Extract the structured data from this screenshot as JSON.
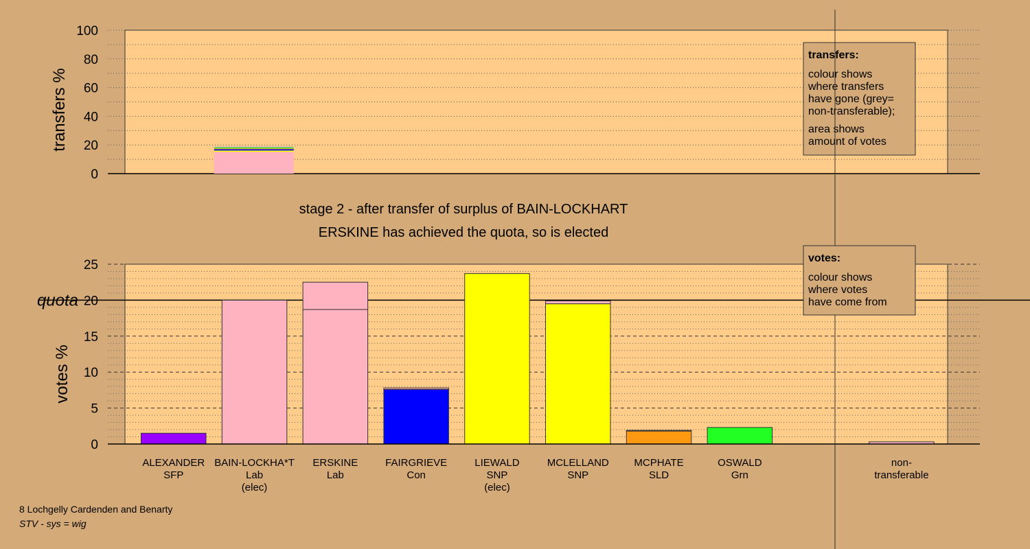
{
  "chart_data": [
    {
      "type": "bar",
      "stacked": true,
      "title": "",
      "xlabel": "",
      "ylabel": "transfers %",
      "ylim": [
        0,
        100
      ],
      "yticks": [
        0,
        20,
        40,
        60,
        80,
        100
      ],
      "grid": true,
      "legend": {
        "placement": "top-right",
        "heading": "transfers:",
        "lines1": [
          "colour shows",
          "where transfers",
          "have gone (grey=",
          "non-transferable);"
        ],
        "lines2": [
          "area shows",
          "amount of votes"
        ]
      },
      "bars": [
        {
          "column": 1,
          "segments": [
            {
              "value": 15.2,
              "color": "#ffb2c0"
            },
            {
              "value": 0.9,
              "color": "#ffff00"
            },
            {
              "value": 0.9,
              "color": "#0000ff"
            },
            {
              "value": 0.6,
              "color": "#ff9911"
            },
            {
              "value": 0.6,
              "color": "#22ff22"
            },
            {
              "value": 0.6,
              "color": "#aaaaaa"
            }
          ]
        }
      ]
    },
    {
      "type": "bar",
      "stacked": true,
      "title": "stage 2 - after transfer of surplus of BAIN-LOCKHART",
      "subtitle": "ERSKINE has achieved the quota, so is elected",
      "xlabel": "",
      "ylabel": "votes %",
      "ylim": [
        0,
        25
      ],
      "yticks": [
        0,
        5,
        10,
        15,
        20,
        25
      ],
      "quota": 20,
      "quota_label": "quota",
      "grid": true,
      "legend": {
        "placement": "top-right",
        "heading": "votes:",
        "lines": [
          "colour shows",
          "where votes",
          "have come from"
        ]
      },
      "candidates": [
        {
          "name": "ALEXANDER",
          "party": "SFP",
          "note": "",
          "segments": [
            {
              "value": 1.5,
              "color": "#9900ff"
            }
          ]
        },
        {
          "name": "BAIN-LOCKHA*T",
          "party": "Lab",
          "note": "(elec)",
          "segments": [
            {
              "value": 20.0,
              "color": "#ffb2c0"
            }
          ]
        },
        {
          "name": "ERSKINE",
          "party": "Lab",
          "note": "",
          "segments": [
            {
              "value": 18.7,
              "color": "#ffb2c0"
            },
            {
              "value": 3.8,
              "color": "#ffb2c0"
            }
          ]
        },
        {
          "name": "FAIRGRIEVE",
          "party": "Con",
          "note": "",
          "segments": [
            {
              "value": 7.6,
              "color": "#0000ff"
            },
            {
              "value": 0.2,
              "color": "#ffb2c0"
            }
          ]
        },
        {
          "name": "LIEWALD",
          "party": "SNP",
          "note": "(elec)",
          "segments": [
            {
              "value": 23.7,
              "color": "#ffff00"
            }
          ]
        },
        {
          "name": "MCLELLAND",
          "party": "SNP",
          "note": "",
          "segments": [
            {
              "value": 19.5,
              "color": "#ffff00"
            },
            {
              "value": 0.4,
              "color": "#ffb2c0"
            }
          ]
        },
        {
          "name": "MCPHATE",
          "party": "SLD",
          "note": "",
          "segments": [
            {
              "value": 1.8,
              "color": "#ff9911"
            },
            {
              "value": 0.1,
              "color": "#ffb2c0"
            }
          ]
        },
        {
          "name": "OSWALD",
          "party": "Grn",
          "note": "",
          "segments": [
            {
              "value": 2.3,
              "color": "#22ff22"
            }
          ]
        },
        {
          "name": "non-",
          "party": "transferable",
          "note": "",
          "segments": [
            {
              "value": 0.3,
              "color": "#ffb2c0"
            }
          ]
        }
      ]
    }
  ],
  "footer": {
    "line1": "8 Lochgelly Cardenden and Benarty",
    "line2": "STV - sys = wig"
  }
}
